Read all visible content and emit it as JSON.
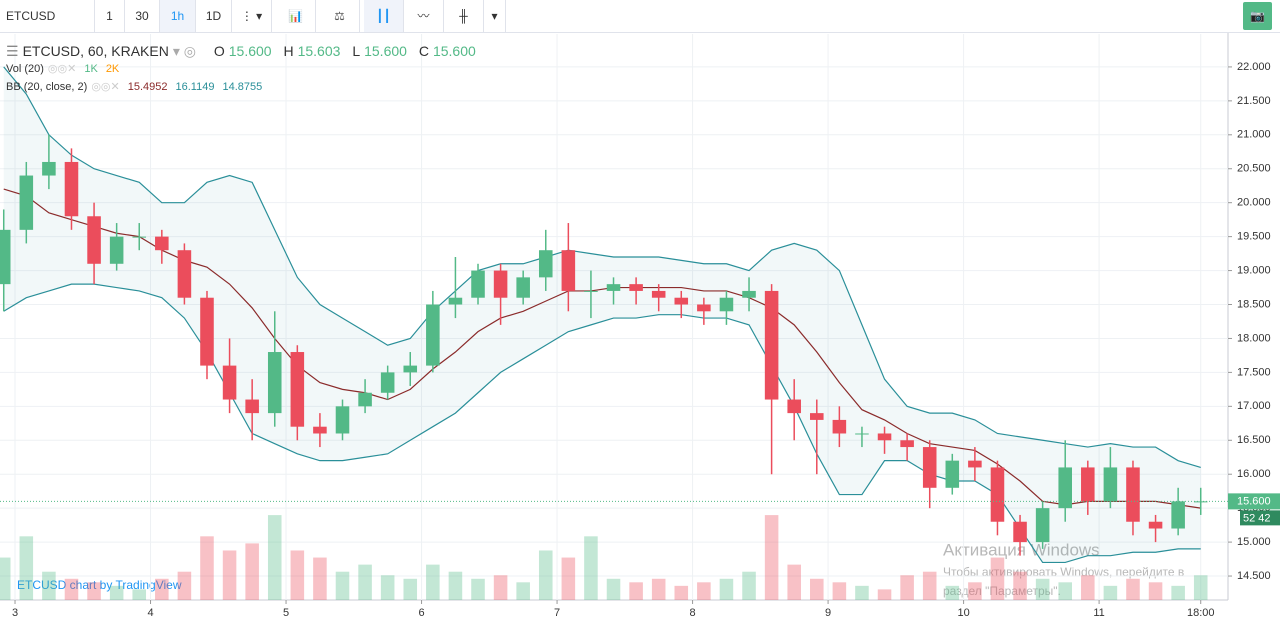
{
  "toolbar": {
    "symbol": "ETCUSD",
    "intervals": [
      "1",
      "30",
      "1h",
      "1D"
    ]
  },
  "legend": {
    "title": "ETCUSD, 60, KRAKEN",
    "ohlc": [
      {
        "label": "O",
        "value": "15.600"
      },
      {
        "label": "H",
        "value": "15.603"
      },
      {
        "label": "L",
        "value": "15.600"
      },
      {
        "label": "C",
        "value": "15.600"
      }
    ],
    "indicators": [
      {
        "name": "Vol (20)",
        "values": [
          "1K",
          "2K"
        ],
        "colors": [
          "#53b987",
          "#ff9800"
        ]
      },
      {
        "name": "BB (20, close, 2)",
        "values": [
          "15.4952",
          "16.1149",
          "14.8755"
        ],
        "colors": [
          "#8b2b2b",
          "#2a8f99",
          "#2a8f99"
        ]
      }
    ]
  },
  "price_marker": {
    "label": "15.600",
    "countdown": "52 42"
  },
  "watermark": "ETCUSD chart by TradingView",
  "os_notice": {
    "title": "Активация Windows",
    "lines": [
      "Чтобы активировать Windows, перейдите в",
      "раздел \"Параметры\"."
    ]
  },
  "chart_data": {
    "type": "candlestick",
    "x": [
      -2,
      2,
      6,
      10,
      14,
      18,
      22,
      26,
      30,
      34,
      38,
      42,
      46,
      50,
      54,
      58,
      62,
      66,
      70,
      74,
      78,
      82,
      86,
      90,
      94,
      98,
      102,
      106,
      110,
      114,
      118,
      122,
      126,
      130,
      134,
      138,
      142,
      146,
      150,
      154,
      158,
      162,
      166,
      170,
      174,
      178,
      182,
      186,
      190,
      194,
      198,
      202,
      206,
      210
    ],
    "open": [
      18.8,
      19.6,
      20.4,
      20.6,
      19.8,
      19.1,
      19.5,
      19.5,
      19.3,
      18.6,
      17.6,
      17.1,
      16.9,
      17.8,
      16.7,
      16.6,
      17.0,
      17.2,
      17.5,
      17.6,
      18.5,
      18.6,
      19.0,
      18.6,
      18.9,
      19.3,
      18.7,
      18.7,
      18.8,
      18.7,
      18.6,
      18.5,
      18.4,
      18.6,
      18.7,
      17.1,
      16.9,
      16.8,
      16.6,
      16.6,
      16.5,
      16.4,
      15.8,
      16.2,
      16.1,
      15.3,
      15.0,
      15.5,
      16.1,
      15.6,
      16.1,
      15.3,
      15.2,
      15.6
    ],
    "high": [
      19.9,
      20.6,
      21.0,
      20.8,
      20.0,
      19.7,
      19.7,
      19.6,
      19.4,
      18.7,
      18.0,
      17.4,
      18.4,
      17.9,
      16.9,
      17.1,
      17.4,
      17.6,
      17.8,
      18.7,
      19.2,
      19.1,
      19.1,
      19.0,
      19.6,
      19.7,
      19.0,
      18.9,
      18.9,
      18.8,
      18.7,
      18.6,
      18.7,
      18.9,
      18.8,
      17.4,
      17.1,
      17.0,
      16.7,
      16.7,
      16.6,
      16.5,
      16.3,
      16.4,
      16.2,
      15.4,
      15.6,
      16.5,
      16.2,
      16.4,
      16.2,
      15.4,
      15.8,
      15.8
    ],
    "low": [
      18.4,
      19.4,
      20.2,
      19.6,
      18.8,
      19.0,
      19.3,
      19.1,
      18.5,
      17.4,
      16.9,
      16.5,
      16.7,
      16.5,
      16.4,
      16.5,
      16.9,
      17.1,
      17.3,
      17.5,
      18.3,
      18.5,
      18.2,
      18.5,
      18.7,
      18.4,
      18.3,
      18.5,
      18.5,
      18.4,
      18.3,
      18.2,
      18.2,
      18.4,
      16.0,
      16.5,
      16.0,
      16.4,
      16.4,
      16.3,
      16.2,
      15.5,
      15.7,
      15.9,
      15.1,
      14.8,
      14.9,
      15.3,
      15.4,
      15.5,
      15.1,
      15.0,
      15.1,
      15.4
    ],
    "close": [
      19.6,
      20.4,
      20.6,
      19.8,
      19.1,
      19.5,
      19.5,
      19.3,
      18.6,
      17.6,
      17.1,
      16.9,
      17.8,
      16.7,
      16.6,
      17.0,
      17.2,
      17.5,
      17.6,
      18.5,
      18.6,
      19.0,
      18.6,
      18.9,
      19.3,
      18.7,
      18.7,
      18.8,
      18.7,
      18.6,
      18.5,
      18.4,
      18.6,
      18.7,
      17.1,
      16.9,
      16.8,
      16.6,
      16.6,
      16.5,
      16.4,
      15.8,
      16.2,
      16.1,
      15.3,
      15.0,
      15.5,
      16.1,
      15.6,
      16.1,
      15.3,
      15.2,
      15.6,
      15.6
    ],
    "volume": [
      600,
      900,
      400,
      300,
      250,
      200,
      150,
      300,
      400,
      900,
      700,
      800,
      1200,
      700,
      600,
      400,
      500,
      350,
      300,
      500,
      400,
      300,
      350,
      250,
      700,
      600,
      900,
      300,
      250,
      300,
      200,
      250,
      300,
      400,
      1200,
      500,
      300,
      250,
      200,
      150,
      350,
      400,
      200,
      250,
      600,
      400,
      300,
      250,
      350,
      200,
      300,
      250,
      200,
      350
    ],
    "bands": {
      "upper": [
        22.0,
        21.6,
        21.0,
        20.7,
        20.5,
        20.4,
        20.3,
        20.0,
        20.0,
        20.3,
        20.4,
        20.3,
        19.6,
        18.9,
        18.5,
        18.3,
        18.1,
        17.9,
        18.0,
        18.4,
        18.7,
        19.0,
        19.1,
        19.1,
        19.2,
        19.3,
        19.25,
        19.2,
        19.2,
        19.2,
        19.15,
        19.1,
        19.1,
        19.0,
        19.3,
        19.4,
        19.3,
        19.0,
        18.2,
        17.4,
        17.0,
        16.9,
        16.9,
        16.8,
        16.6,
        16.55,
        16.5,
        16.45,
        16.4,
        16.45,
        16.4,
        16.4,
        16.2,
        16.1
      ],
      "middle": [
        20.2,
        20.1,
        19.85,
        19.75,
        19.65,
        19.55,
        19.5,
        19.3,
        19.15,
        19.05,
        18.8,
        18.45,
        18.0,
        17.6,
        17.35,
        17.25,
        17.2,
        17.1,
        17.25,
        17.55,
        17.8,
        18.1,
        18.3,
        18.4,
        18.55,
        18.7,
        18.7,
        18.75,
        18.75,
        18.75,
        18.75,
        18.7,
        18.7,
        18.6,
        18.45,
        18.2,
        17.8,
        17.35,
        16.95,
        16.8,
        16.6,
        16.45,
        16.4,
        16.35,
        16.15,
        15.9,
        15.6,
        15.55,
        15.6,
        15.6,
        15.6,
        15.6,
        15.55,
        15.5
      ],
      "lower": [
        18.4,
        18.6,
        18.7,
        18.8,
        18.8,
        18.75,
        18.7,
        18.6,
        18.3,
        17.8,
        17.2,
        16.6,
        16.45,
        16.3,
        16.2,
        16.2,
        16.25,
        16.3,
        16.5,
        16.7,
        16.9,
        17.2,
        17.5,
        17.7,
        17.9,
        18.1,
        18.2,
        18.3,
        18.3,
        18.35,
        18.35,
        18.3,
        18.3,
        18.2,
        17.6,
        17.0,
        16.3,
        15.7,
        15.7,
        16.2,
        16.2,
        16.0,
        15.9,
        15.9,
        15.7,
        15.2,
        14.7,
        14.7,
        14.8,
        14.8,
        14.85,
        14.85,
        14.9,
        14.9
      ]
    },
    "up_color": "#53b987",
    "down_color": "#eb4d5c",
    "band_colors": {
      "upper": "#2a8f99",
      "middle": "#8b2b2b",
      "lower": "#2a8f99"
    },
    "xlim": [
      -2.66,
      214.83
    ],
    "xticks": [
      {
        "value": 0,
        "label": "3"
      },
      {
        "value": 24,
        "label": "4"
      },
      {
        "value": 48,
        "label": "5"
      },
      {
        "value": 72,
        "label": "6"
      },
      {
        "value": 96,
        "label": "7"
      },
      {
        "value": 120,
        "label": "8"
      },
      {
        "value": 144,
        "label": "9"
      },
      {
        "value": 168,
        "label": "10"
      },
      {
        "value": 192,
        "label": "11"
      },
      {
        "value": 210,
        "label": "18:00"
      }
    ],
    "ylim": [
      14.147,
      22.485
    ],
    "yticks": [
      {
        "value": 14.5,
        "label": "14.500"
      },
      {
        "value": 15,
        "label": "15.000"
      },
      {
        "value": 15.5,
        "label": "15.500"
      },
      {
        "value": 16,
        "label": "16.000"
      },
      {
        "value": 16.5,
        "label": "16.500"
      },
      {
        "value": 17,
        "label": "17.000"
      },
      {
        "value": 17.5,
        "label": "17.500"
      },
      {
        "value": 18,
        "label": "18.000"
      },
      {
        "value": 18.5,
        "label": "18.500"
      },
      {
        "value": 19,
        "label": "19.000"
      },
      {
        "value": 19.5,
        "label": "19.500"
      },
      {
        "value": 20,
        "label": "20.000"
      },
      {
        "value": 20.5,
        "label": "20.500"
      },
      {
        "value": 21,
        "label": "21.000"
      },
      {
        "value": 21.5,
        "label": "21.500"
      },
      {
        "value": 22,
        "label": "22.000"
      }
    ],
    "y2lim": [
      0,
      8000
    ],
    "grid": true
  }
}
